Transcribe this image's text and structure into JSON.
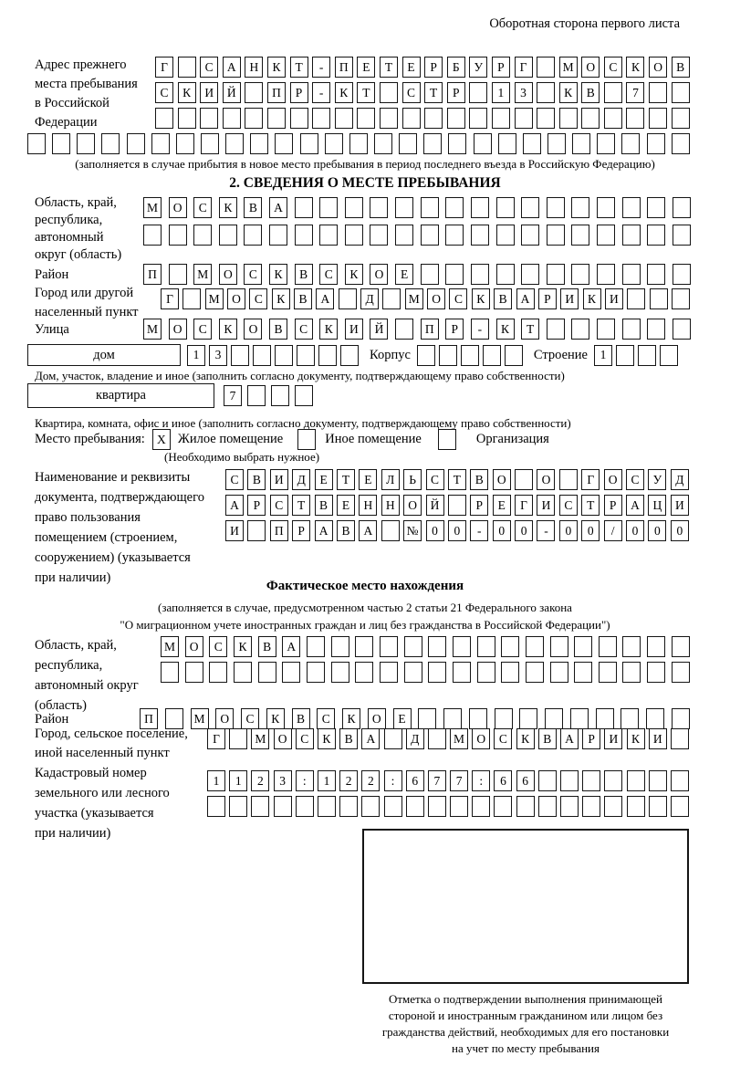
{
  "header": {
    "corner_note": "Оборотная сторона первого листа"
  },
  "prev_address": {
    "label_lines": [
      "Адрес прежнего",
      "места пребывания",
      "в Российской",
      "Федерации"
    ],
    "rows": [
      {
        "cells": "Г САНКТ-ПЕТЕРБУРГ МОСКОВ",
        "count": 24
      },
      {
        "cells": "СКИЙ ПР-КТ СТР 13 КВ 7",
        "count": 24
      },
      {
        "cells": "",
        "count": 24
      },
      {
        "cells": "",
        "count": 27
      }
    ],
    "footnote": "(заполняется в случае прибытия в новое место пребывания в период последнего въезда в Российскую Федерацию)"
  },
  "section2": {
    "title": "2. СВЕДЕНИЯ О МЕСТЕ ПРЕБЫВАНИЯ",
    "region": {
      "label_lines": [
        "Область, край,",
        "республика,",
        "автономный",
        "округ (область)"
      ],
      "rows": [
        {
          "cells": "МОСКВА",
          "count": 22
        },
        {
          "cells": "",
          "count": 22
        }
      ]
    },
    "district": {
      "label": "Район",
      "row": {
        "cells": "П МОСКВСКОЕ",
        "count": 22
      }
    },
    "city": {
      "label_lines": [
        "Город или другой",
        "населенный пункт"
      ],
      "row": {
        "cells": "Г МОСКВА Д МОСКВАРИКИ",
        "count": 24
      }
    },
    "street": {
      "label": "Улица",
      "row": {
        "cells": "МОСКОВСКИЙ ПР-КТ",
        "count": 22
      }
    },
    "house": {
      "field_label": "дом",
      "row": {
        "cells": "13",
        "count": 8
      },
      "korpus_label": "Корпус",
      "korpus_row": {
        "cells": "",
        "count": 5
      },
      "stroenie_label": "Строение",
      "stroenie_row": {
        "cells": "1",
        "count": 4
      },
      "caption": "Дом, участок, владение и иное (заполнить согласно документу, подтверждающему право собственности)"
    },
    "apartment": {
      "field_label": "квартира",
      "row": {
        "cells": "7",
        "count": 4
      },
      "caption": "Квартира, комната, офис и иное (заполнить согласно документу, подтверждающему право собственности)"
    },
    "stay_type": {
      "label": "Место пребывания:",
      "options": [
        {
          "label": "Жилое помещение",
          "mark": "X"
        },
        {
          "label": "Иное помещение",
          "mark": ""
        },
        {
          "label": "Организация",
          "mark": ""
        }
      ],
      "note": "(Необходимо выбрать нужное)"
    },
    "doc": {
      "label_lines": [
        "Наименование и реквизиты",
        "документа, подтверждающего",
        "право пользования",
        "помещением (строением,",
        "сооружением) (указывается",
        "при наличии)"
      ],
      "rows": [
        {
          "cells": "СВИДЕТЕЛЬСТВО О ГОСУД",
          "count": 21
        },
        {
          "cells": "АРСТВЕННОЙ РЕГИСТРАЦИ",
          "count": 21
        },
        {
          "cells": "И ПРАВА №00-00-00/000",
          "count": 21
        }
      ]
    }
  },
  "actual_location": {
    "title": "Фактическое место нахождения",
    "note_lines": [
      "(заполняется в случае, предусмотренном частью 2 статьи 21 Федерального закона",
      "\"О миграционном учете иностранных граждан и лиц без гражданства в Российской Федерации\")"
    ],
    "region": {
      "label_lines": [
        "Область, край,",
        "республика,",
        "автономный округ",
        "(область)"
      ],
      "rows": [
        {
          "cells": "МОСКВА",
          "count": 22
        },
        {
          "cells": "",
          "count": 22
        }
      ]
    },
    "district": {
      "label": "Район",
      "row": {
        "cells": "П МОСКВСКОЕ",
        "count": 22
      }
    },
    "city": {
      "label_lines": [
        "Город, сельское поселение,",
        "иной населенный пункт"
      ],
      "row": {
        "cells": "Г МОСКВА Д МОСКВАРИКИ",
        "count": 22
      }
    },
    "cadastral": {
      "label_lines": [
        "Кадастровый номер",
        "земельного или лесного",
        "участка (указывается",
        "при наличии)"
      ],
      "rows": [
        {
          "cells": "1123:122:677:66",
          "count": 22
        },
        {
          "cells": "",
          "count": 22
        }
      ]
    }
  },
  "stamp": {
    "caption_lines": [
      "Отметка о подтверждении выполнения принимающей",
      "стороной и иностранным гражданином или лицом без",
      "гражданства действий, необходимых для его постановки",
      "на учет по месту пребывания"
    ]
  }
}
